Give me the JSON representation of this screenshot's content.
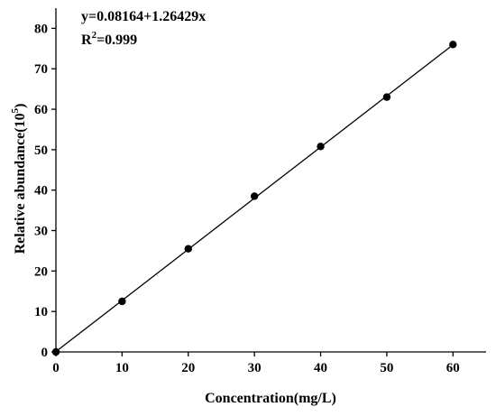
{
  "chart_data": {
    "type": "scatter",
    "xlabel": "Concentration(mg/L)",
    "ylabel_main": "Relative abundance(10",
    "ylabel_sup": "5",
    "ylabel_close": ")",
    "xlim": [
      0,
      65
    ],
    "ylim": [
      0,
      85
    ],
    "xticks": [
      0,
      10,
      20,
      30,
      40,
      50,
      60
    ],
    "yticks": [
      0,
      10,
      20,
      30,
      40,
      50,
      60,
      70,
      80
    ],
    "grid": false,
    "series": [
      {
        "x": [
          0,
          10,
          20,
          30,
          40,
          50,
          60
        ],
        "y": [
          0,
          12.5,
          25.5,
          38.5,
          50.8,
          63.0,
          76.0
        ]
      }
    ],
    "fit_line": {
      "intercept": 0.08164,
      "slope": 1.26429,
      "x_range": [
        0,
        60
      ]
    },
    "annotations": {
      "equation": "y=0.08164+1.26429x",
      "r2_prefix": "R",
      "r2_sup": "2",
      "r2_value": "=0.999"
    }
  }
}
